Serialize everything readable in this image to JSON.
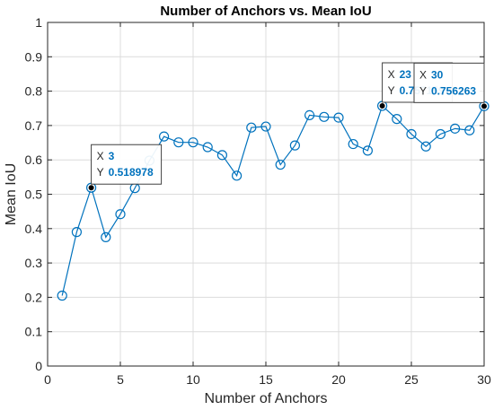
{
  "chart_data": {
    "type": "line",
    "title": "Number of Anchors vs. Mean IoU",
    "xlabel": "Number of Anchors",
    "ylabel": "Mean IoU",
    "xlim": [
      0,
      30
    ],
    "ylim": [
      0,
      1
    ],
    "xticks": [
      "0",
      "5",
      "10",
      "15",
      "20",
      "25",
      "30"
    ],
    "yticks": [
      "0",
      "0.1",
      "0.2",
      "0.3",
      "0.4",
      "0.5",
      "0.6",
      "0.7",
      "0.8",
      "0.9",
      "1"
    ],
    "grid": true,
    "series": [
      {
        "x": [
          1,
          2,
          3,
          4,
          5,
          6,
          7,
          8,
          9,
          10,
          11,
          12,
          13,
          14,
          15,
          16,
          17,
          18,
          19,
          20,
          21,
          22,
          23,
          24,
          25,
          26,
          27,
          28,
          29,
          30
        ],
        "values": [
          0.205,
          0.39,
          0.518978,
          0.375,
          0.442,
          0.518,
          0.598,
          0.668,
          0.651,
          0.651,
          0.637,
          0.614,
          0.554,
          0.694,
          0.697,
          0.586,
          0.642,
          0.73,
          0.725,
          0.723,
          0.646,
          0.627,
          0.757159,
          0.719,
          0.675,
          0.639,
          0.675,
          0.691,
          0.686,
          0.756263
        ]
      }
    ],
    "colors": {
      "line": "#0072BD",
      "grid": "#dcdcdc",
      "axis": "#262626",
      "datatip_value": "#0072BD",
      "datatip_marker": "#000000"
    },
    "datatips": [
      {
        "x_label": "X",
        "x_value": "3",
        "y_label": "Y",
        "y_value": "0.518978",
        "x": 3,
        "y": 0.518978
      },
      {
        "x_label": "X",
        "x_value": "23",
        "y_label": "Y",
        "y_value": "0.757159",
        "x": 23,
        "y": 0.757159
      },
      {
        "x_label": "X",
        "x_value": "30",
        "y_label": "Y",
        "y_value": "0.756263",
        "x": 30,
        "y": 0.756263
      }
    ]
  }
}
